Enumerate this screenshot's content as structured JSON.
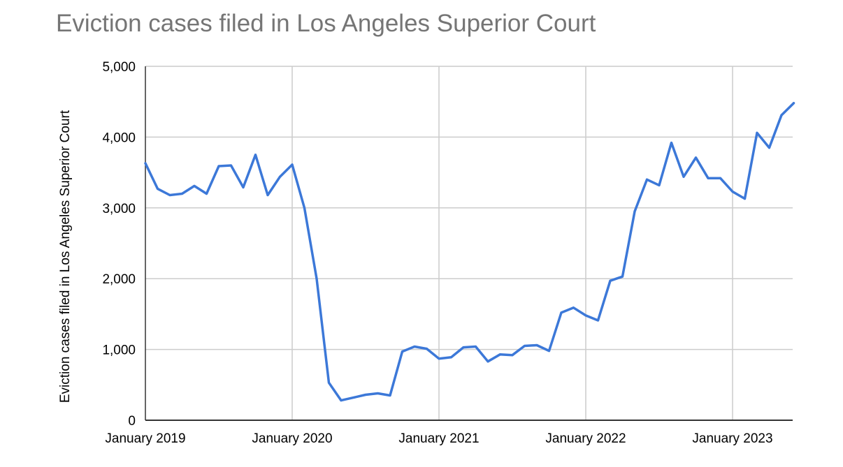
{
  "chart_data": {
    "type": "line",
    "title": "Eviction cases filed in Los Angeles Superior Court",
    "ylabel": "Eviction cases filed in Los Angeles Superior Court",
    "xlabel": "",
    "ylim": [
      0,
      5000
    ],
    "yticks": [
      0,
      1000,
      2000,
      3000,
      4000,
      5000
    ],
    "ytick_labels": [
      "0",
      "1,000",
      "2,000",
      "3,000",
      "4,000",
      "5,000"
    ],
    "x_ticks": [
      {
        "label": "January 2019",
        "month_index": 0
      },
      {
        "label": "January 2020",
        "month_index": 12
      },
      {
        "label": "January 2021",
        "month_index": 24
      },
      {
        "label": "January 2022",
        "month_index": 36
      },
      {
        "label": "January 2023",
        "month_index": 48
      }
    ],
    "grid": true,
    "legend": "none",
    "series": [
      {
        "color": "#3c78d8",
        "x": [
          "2019-01",
          "2019-02",
          "2019-03",
          "2019-04",
          "2019-05",
          "2019-06",
          "2019-07",
          "2019-08",
          "2019-09",
          "2019-10",
          "2019-11",
          "2019-12",
          "2020-01",
          "2020-02",
          "2020-03",
          "2020-04",
          "2020-05",
          "2020-06",
          "2020-07",
          "2020-08",
          "2020-09",
          "2020-10",
          "2020-11",
          "2020-12",
          "2021-01",
          "2021-02",
          "2021-03",
          "2021-04",
          "2021-05",
          "2021-06",
          "2021-07",
          "2021-08",
          "2021-09",
          "2021-10",
          "2021-11",
          "2021-12",
          "2022-01",
          "2022-02",
          "2022-03",
          "2022-04",
          "2022-05",
          "2022-06",
          "2022-07",
          "2022-08",
          "2022-09",
          "2022-10",
          "2022-11",
          "2022-12",
          "2023-01",
          "2023-02",
          "2023-03",
          "2023-04",
          "2023-05",
          "2023-06"
        ],
        "values": [
          3630,
          3270,
          3180,
          3200,
          3310,
          3200,
          3590,
          3600,
          3290,
          3750,
          3180,
          3440,
          3610,
          3000,
          2000,
          530,
          280,
          320,
          360,
          380,
          350,
          970,
          1040,
          1010,
          870,
          890,
          1030,
          1040,
          830,
          930,
          920,
          1050,
          1060,
          980,
          1520,
          1590,
          1480,
          1410,
          1970,
          2030,
          2950,
          3400,
          3320,
          3920,
          3440,
          3710,
          3420,
          3420,
          3230,
          3130,
          4060,
          3850,
          4310,
          4480
        ]
      }
    ]
  }
}
